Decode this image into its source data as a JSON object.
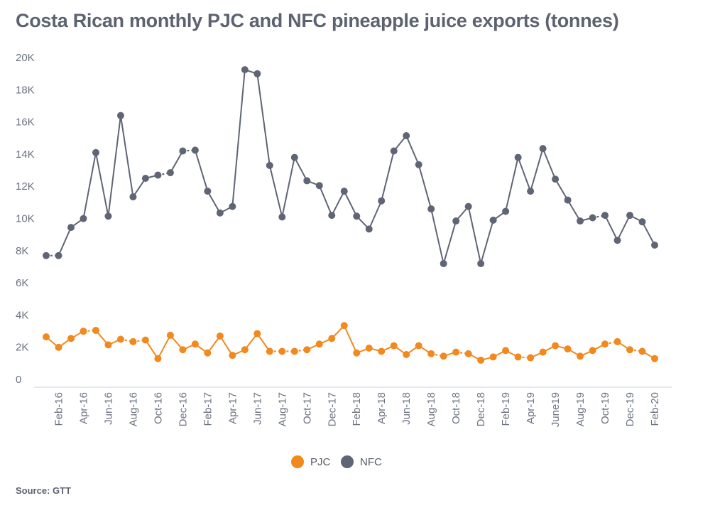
{
  "title": "Costa Rican monthly PJC and NFC pineapple juice exports (tonnes)",
  "source": "Source: GTT",
  "chart_data": {
    "type": "line",
    "title": "Costa Rican monthly PJC and NFC pineapple juice exports (tonnes)",
    "ylim": [
      0,
      20000
    ],
    "yticks": [
      0,
      2000,
      4000,
      6000,
      8000,
      10000,
      12000,
      14000,
      16000,
      18000,
      20000
    ],
    "ytick_labels": [
      "0",
      "2K",
      "4K",
      "6K",
      "8K",
      "10K",
      "12K",
      "14K",
      "16K",
      "18K",
      "20K"
    ],
    "x": [
      "Jan-16",
      "Feb-16",
      "Mar-16",
      "Apr-16",
      "May-16",
      "Jun-16",
      "Jul-16",
      "Aug-16",
      "Sep-16",
      "Oct-16",
      "Nov-16",
      "Dec-16",
      "Jan-17",
      "Feb-17",
      "Mar-17",
      "Apr-17",
      "May-17",
      "Jun-17",
      "Jul-17",
      "Aug-17",
      "Sep-17",
      "Oct-17",
      "Nov-17",
      "Dec-17",
      "Jan-18",
      "Feb-18",
      "Mar-18",
      "Apr-18",
      "May-18",
      "Jun-18",
      "Jul-18",
      "Aug-18",
      "Sep-18",
      "Oct-18",
      "Nov-18",
      "Dec-18",
      "Jan-19",
      "Feb-19",
      "Mar-19",
      "Apr-19",
      "May-19",
      "June19",
      "Jul-19",
      "Aug-19",
      "Sep-19",
      "Oct-19",
      "Nov-19",
      "Dec-19",
      "Jan-20",
      "Feb-20"
    ],
    "xtick_labels": [
      "Feb-16",
      "Apr-16",
      "Jun-16",
      "Aug-16",
      "Oct-16",
      "Dec-16",
      "Feb-17",
      "Apr-17",
      "Jun-17",
      "Aug-17",
      "Oct-17",
      "Dec-17",
      "Feb-18",
      "Apr-18",
      "Jun-18",
      "Aug-18",
      "Oct-18",
      "Dec-18",
      "Feb-19",
      "Apr-19",
      "June19",
      "Aug-19",
      "Oct-19",
      "Dec-19",
      "Feb-20"
    ],
    "series": [
      {
        "name": "PJC",
        "color": "#f2891f",
        "values": [
          2600,
          1950,
          2500,
          2950,
          3000,
          2100,
          2450,
          2300,
          2400,
          1250,
          2700,
          1800,
          2150,
          1600,
          2650,
          1450,
          1800,
          2800,
          1700,
          1700,
          1700,
          1800,
          2150,
          2500,
          3300,
          1600,
          1900,
          1700,
          2050,
          1500,
          2050,
          1550,
          1400,
          1650,
          1550,
          1150,
          1350,
          1750,
          1350,
          1300,
          1650,
          2050,
          1850,
          1400,
          1750,
          2150,
          2300,
          1800,
          1700,
          1250
        ]
      },
      {
        "name": "NFC",
        "color": "#5f6575",
        "values": [
          7650,
          7650,
          9400,
          9950,
          14050,
          10100,
          16350,
          11300,
          12450,
          12650,
          12800,
          14150,
          14200,
          11650,
          10300,
          10700,
          19200,
          18950,
          13250,
          10050,
          13750,
          12300,
          12000,
          10150,
          11650,
          10100,
          9300,
          11050,
          14150,
          15100,
          13300,
          10550,
          7150,
          9800,
          10700,
          7150,
          9850,
          10400,
          13750,
          11650,
          14300,
          12400,
          11100,
          9800,
          10000,
          10150,
          8600,
          10150,
          9750,
          8300
        ]
      }
    ],
    "legend": [
      "PJC",
      "NFC"
    ],
    "legend_position": "bottom-center",
    "grid": false
  }
}
